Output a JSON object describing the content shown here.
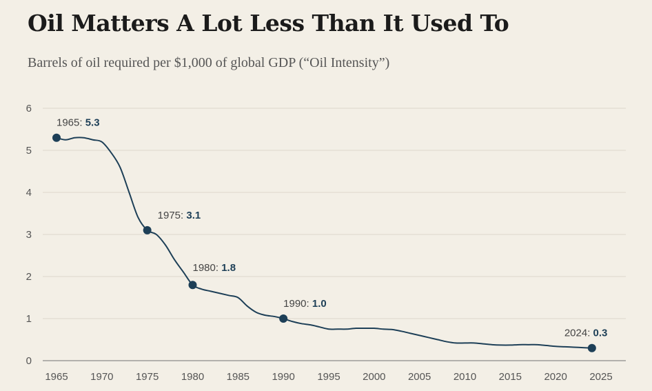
{
  "chart_data": {
    "type": "line",
    "title": "Oil Matters A Lot Less Than It Used To",
    "subtitle": "Barrels of oil required per $1,000 of global GDP (“Oil Intensity”)",
    "xlabel": "",
    "ylabel": "",
    "xlim": [
      1965,
      2025
    ],
    "ylim": [
      0,
      6
    ],
    "x_ticks": [
      1965,
      1970,
      1975,
      1980,
      1985,
      1990,
      1995,
      2000,
      2005,
      2010,
      2015,
      2020,
      2025
    ],
    "y_ticks": [
      0,
      1,
      2,
      3,
      4,
      5,
      6
    ],
    "grid": "horizontal",
    "line_color": "#1d3f57",
    "series": [
      {
        "x": [
          1965,
          1966,
          1967,
          1968,
          1969,
          1970,
          1971,
          1972,
          1973,
          1974,
          1975,
          1976,
          1977,
          1978,
          1979,
          1980,
          1981,
          1982,
          1983,
          1984,
          1985,
          1986,
          1987,
          1988,
          1989,
          1990,
          1991,
          1992,
          1993,
          1994,
          1995,
          1996,
          1997,
          1998,
          1999,
          2000,
          2001,
          2002,
          2003,
          2004,
          2005,
          2006,
          2007,
          2008,
          2009,
          2010,
          2011,
          2012,
          2013,
          2014,
          2015,
          2016,
          2017,
          2018,
          2019,
          2020,
          2021,
          2022,
          2023,
          2024
        ],
        "y": [
          5.3,
          5.25,
          5.3,
          5.3,
          5.25,
          5.2,
          4.95,
          4.6,
          4.0,
          3.4,
          3.1,
          3.0,
          2.75,
          2.4,
          2.1,
          1.8,
          1.7,
          1.65,
          1.6,
          1.55,
          1.5,
          1.3,
          1.15,
          1.08,
          1.05,
          1.0,
          0.93,
          0.88,
          0.85,
          0.8,
          0.75,
          0.75,
          0.75,
          0.77,
          0.77,
          0.77,
          0.75,
          0.74,
          0.7,
          0.65,
          0.6,
          0.55,
          0.5,
          0.45,
          0.42,
          0.42,
          0.42,
          0.4,
          0.38,
          0.37,
          0.37,
          0.38,
          0.38,
          0.38,
          0.36,
          0.34,
          0.33,
          0.32,
          0.31,
          0.3
        ]
      }
    ],
    "annotations": [
      {
        "year": 1965,
        "year_text": "1965:",
        "value": 5.3,
        "value_text": "5.3"
      },
      {
        "year": 1975,
        "year_text": "1975:",
        "value": 3.1,
        "value_text": "3.1"
      },
      {
        "year": 1980,
        "year_text": "1980:",
        "value": 1.8,
        "value_text": "1.8"
      },
      {
        "year": 1990,
        "year_text": "1990:",
        "value": 1.0,
        "value_text": "1.0"
      },
      {
        "year": 2024,
        "year_text": "2024:",
        "value": 0.3,
        "value_text": "0.3"
      }
    ]
  }
}
